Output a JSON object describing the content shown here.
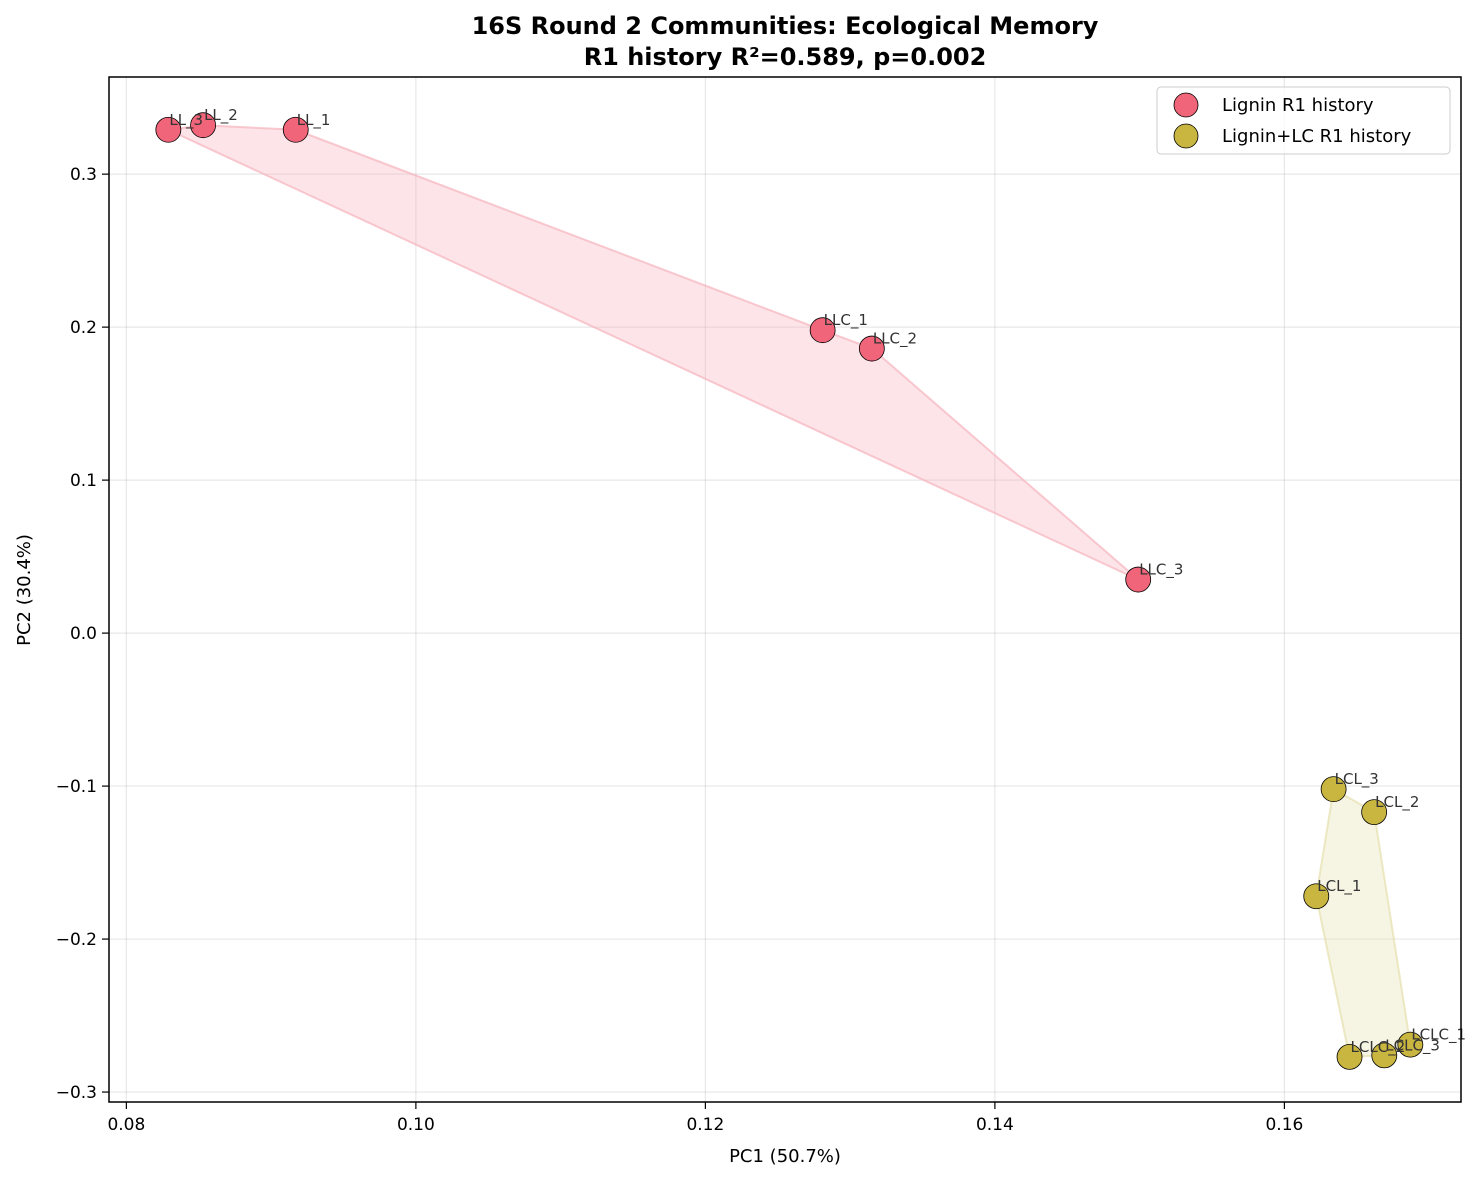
{
  "chart_data": {
    "type": "scatter",
    "title": "16S Round 2 Communities: Ecological Memory",
    "subtitle": "R1 history R²=0.589, p=0.002",
    "xlabel": "PC1 (50.7%)",
    "ylabel": "PC2 (30.4%)",
    "xlim": [
      0.0788,
      0.1722
    ],
    "ylim": [
      -0.3065,
      0.3635
    ],
    "x_ticks": [
      0.08,
      0.1,
      0.12,
      0.14,
      0.16
    ],
    "x_tick_labels": [
      "0.08",
      "0.10",
      "0.12",
      "0.14",
      "0.16"
    ],
    "y_ticks": [
      -0.3,
      -0.2,
      -0.1,
      0.0,
      0.1,
      0.2,
      0.3
    ],
    "y_tick_labels": [
      "−0.3",
      "−0.2",
      "−0.1",
      "0.0",
      "0.1",
      "0.2",
      "0.3"
    ],
    "grid": true,
    "legend_position": "top-right",
    "series": [
      {
        "name": "Lignin R1 history",
        "color": "#f0657a",
        "hull_color": "#f6b3be",
        "points": [
          {
            "label": "LL_3",
            "x": 0.0829,
            "y": 0.329
          },
          {
            "label": "LL_2",
            "x": 0.0853,
            "y": 0.332
          },
          {
            "label": "LL_1",
            "x": 0.0917,
            "y": 0.329
          },
          {
            "label": "LLC_1",
            "x": 0.1281,
            "y": 0.198
          },
          {
            "label": "LLC_2",
            "x": 0.1315,
            "y": 0.186
          },
          {
            "label": "LLC_3",
            "x": 0.1499,
            "y": 0.035
          }
        ],
        "hull": [
          {
            "x": 0.0829,
            "y": 0.329
          },
          {
            "x": 0.0853,
            "y": 0.332
          },
          {
            "x": 0.0917,
            "y": 0.329
          },
          {
            "x": 0.1281,
            "y": 0.198
          },
          {
            "x": 0.1315,
            "y": 0.186
          },
          {
            "x": 0.1499,
            "y": 0.035
          }
        ]
      },
      {
        "name": "Lignin+LC R1 history",
        "color": "#c9b641",
        "hull_color": "#e6dfae",
        "points": [
          {
            "label": "LCL_3",
            "x": 0.1634,
            "y": -0.102
          },
          {
            "label": "LCL_2",
            "x": 0.1662,
            "y": -0.117
          },
          {
            "label": "LCL_1",
            "x": 0.1622,
            "y": -0.172
          },
          {
            "label": "LCLC_1",
            "x": 0.1687,
            "y": -0.269
          },
          {
            "label": "LCLC_2",
            "x": 0.1645,
            "y": -0.277
          },
          {
            "label": "LCLC_3",
            "x": 0.1669,
            "y": -0.276
          }
        ],
        "hull": [
          {
            "x": 0.1634,
            "y": -0.102
          },
          {
            "x": 0.1662,
            "y": -0.117
          },
          {
            "x": 0.1687,
            "y": -0.269
          },
          {
            "x": 0.1669,
            "y": -0.276
          },
          {
            "x": 0.1645,
            "y": -0.277
          },
          {
            "x": 0.1622,
            "y": -0.172
          }
        ]
      }
    ]
  }
}
